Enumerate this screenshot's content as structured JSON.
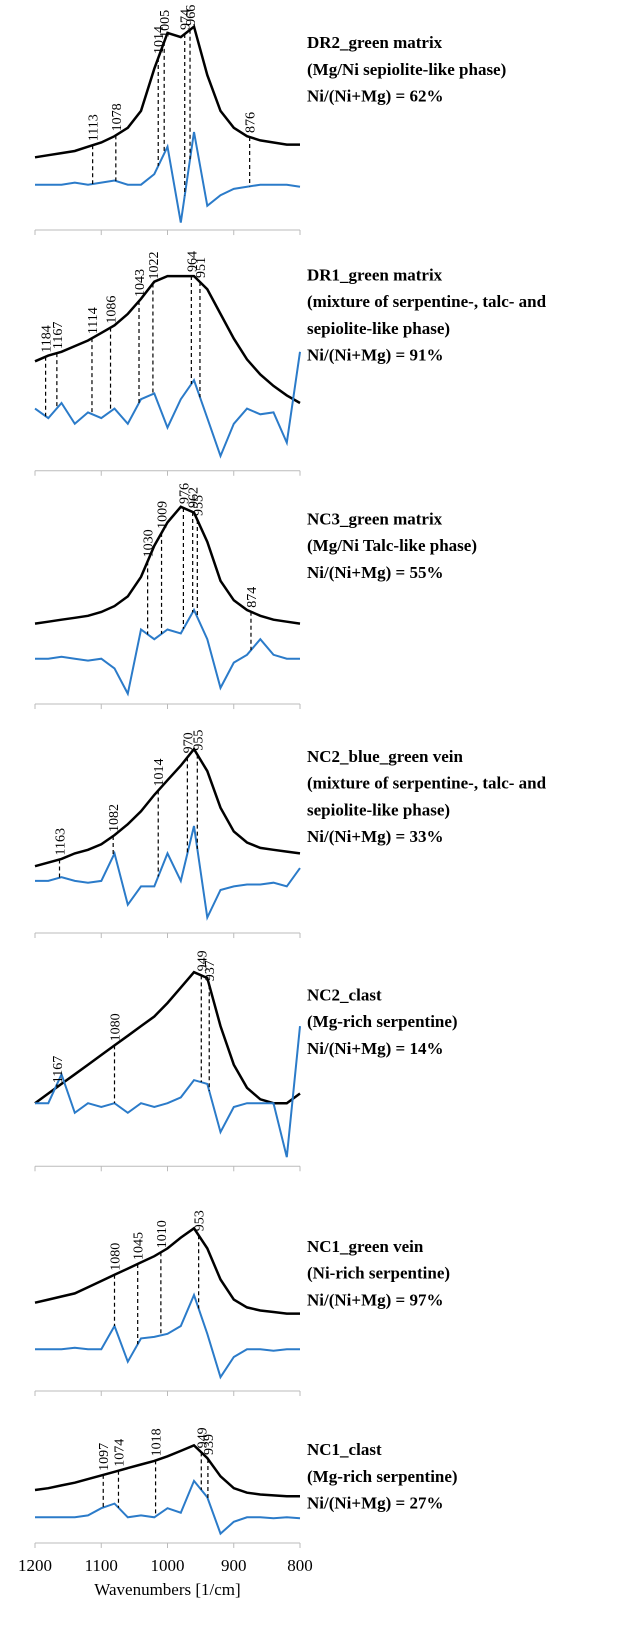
{
  "chart_data": [
    {
      "type": "line",
      "annotations": [
        "DR2_green matrix",
        "(Mg/Ni sepiolite-like phase)",
        "Ni/(Ni+Mg) = 62%"
      ],
      "x": [
        1200,
        1180,
        1160,
        1140,
        1120,
        1100,
        1080,
        1060,
        1040,
        1020,
        1000,
        980,
        960,
        940,
        920,
        900,
        880,
        860,
        840,
        820,
        800
      ],
      "series": [
        {
          "color": "#000000",
          "values": [
            0.33,
            0.34,
            0.35,
            0.36,
            0.38,
            0.4,
            0.43,
            0.47,
            0.55,
            0.75,
            0.92,
            0.9,
            0.95,
            0.72,
            0.55,
            0.47,
            0.43,
            0.41,
            0.4,
            0.39,
            0.39
          ]
        },
        {
          "color": "#2b7bc9",
          "values": [
            0.2,
            0.2,
            0.2,
            0.21,
            0.2,
            0.21,
            0.22,
            0.2,
            0.2,
            0.25,
            0.38,
            0.02,
            0.45,
            0.1,
            0.15,
            0.18,
            0.19,
            0.2,
            0.2,
            0.2,
            0.19
          ]
        }
      ],
      "peaks": [
        1113,
        1078,
        1014,
        1005,
        974,
        966,
        876
      ],
      "xlim": [
        1200,
        800
      ],
      "xticks": [
        1200,
        1100,
        1000,
        900,
        800
      ],
      "ylim": [
        0,
        1
      ]
    },
    {
      "type": "line",
      "annotations": [
        "DR1_green matrix",
        "(mixture of serpentine-, talc- and",
        "sepiolite-like phase)",
        "Ni/(Ni+Mg) = 91%"
      ],
      "x": [
        1200,
        1180,
        1160,
        1140,
        1120,
        1100,
        1080,
        1060,
        1040,
        1020,
        1000,
        980,
        960,
        940,
        920,
        900,
        880,
        860,
        840,
        820,
        800
      ],
      "series": [
        {
          "color": "#000000",
          "values": [
            0.55,
            0.58,
            0.6,
            0.63,
            0.66,
            0.7,
            0.74,
            0.8,
            0.88,
            0.97,
            1,
            1,
            1,
            0.93,
            0.8,
            0.67,
            0.56,
            0.48,
            0.42,
            0.37,
            0.33
          ]
        },
        {
          "color": "#2b7bc9",
          "values": [
            0.3,
            0.25,
            0.33,
            0.22,
            0.28,
            0.25,
            0.3,
            0.22,
            0.35,
            0.38,
            0.2,
            0.35,
            0.45,
            0.25,
            0.05,
            0.22,
            0.3,
            0.27,
            0.28,
            0.12,
            0.6
          ]
        }
      ],
      "peaks": [
        1184,
        1167,
        1114,
        1086,
        1043,
        1022,
        964,
        951
      ],
      "xlim": [
        1200,
        800
      ],
      "xticks": [
        1200,
        1100,
        1000,
        900,
        800
      ],
      "ylim": [
        0,
        1
      ]
    },
    {
      "type": "line",
      "annotations": [
        "NC3_green matrix",
        "(Mg/Ni Talc-like phase)",
        "Ni/(Ni+Mg) = 55%"
      ],
      "x": [
        1200,
        1180,
        1160,
        1140,
        1120,
        1100,
        1080,
        1060,
        1040,
        1020,
        1000,
        980,
        960,
        940,
        920,
        900,
        880,
        860,
        840,
        820,
        800
      ],
      "series": [
        {
          "color": "#000000",
          "values": [
            0.38,
            0.39,
            0.4,
            0.41,
            0.42,
            0.44,
            0.47,
            0.52,
            0.62,
            0.78,
            0.9,
            0.98,
            0.95,
            0.8,
            0.6,
            0.5,
            0.45,
            0.42,
            0.4,
            0.39,
            0.38
          ]
        },
        {
          "color": "#2b7bc9",
          "values": [
            0.2,
            0.2,
            0.21,
            0.2,
            0.19,
            0.2,
            0.15,
            0.02,
            0.35,
            0.3,
            0.35,
            0.33,
            0.45,
            0.3,
            0.05,
            0.18,
            0.22,
            0.3,
            0.22,
            0.2,
            0.2
          ]
        }
      ],
      "peaks": [
        1030,
        1009,
        976,
        962,
        955,
        874
      ],
      "xlim": [
        1200,
        800
      ],
      "xticks": [
        1200,
        1100,
        1000,
        900,
        800
      ],
      "ylim": [
        0,
        1
      ]
    },
    {
      "type": "line",
      "annotations": [
        "NC2_blue_green vein",
        "(mixture of serpentine-, talc- and",
        "sepiolite-like phase)",
        "Ni/(Ni+Mg) = 33%"
      ],
      "x": [
        1200,
        1180,
        1160,
        1140,
        1120,
        1100,
        1080,
        1060,
        1040,
        1020,
        1000,
        980,
        960,
        940,
        920,
        900,
        880,
        860,
        840,
        820,
        800
      ],
      "series": [
        {
          "color": "#000000",
          "values": [
            0.33,
            0.35,
            0.37,
            0.4,
            0.42,
            0.45,
            0.5,
            0.56,
            0.63,
            0.72,
            0.8,
            0.88,
            0.97,
            0.85,
            0.65,
            0.52,
            0.46,
            0.43,
            0.42,
            0.41,
            0.4
          ]
        },
        {
          "color": "#2b7bc9",
          "values": [
            0.25,
            0.25,
            0.27,
            0.25,
            0.24,
            0.25,
            0.4,
            0.12,
            0.22,
            0.22,
            0.4,
            0.25,
            0.55,
            0.05,
            0.2,
            0.22,
            0.23,
            0.23,
            0.24,
            0.22,
            0.32
          ]
        }
      ],
      "peaks": [
        1163,
        1082,
        1014,
        970,
        955
      ],
      "xlim": [
        1200,
        800
      ],
      "xticks": [
        1200,
        1100,
        1000,
        900,
        800
      ],
      "ylim": [
        0,
        1
      ]
    },
    {
      "type": "line",
      "annotations": [
        "NC2_clast",
        "(Mg-rich serpentine)",
        "Ni/(Ni+Mg) = 14%"
      ],
      "x": [
        1200,
        1180,
        1160,
        1140,
        1120,
        1100,
        1080,
        1060,
        1040,
        1020,
        1000,
        980,
        960,
        940,
        920,
        900,
        880,
        860,
        840,
        820,
        800
      ],
      "series": [
        {
          "color": "#000000",
          "values": [
            0.3,
            0.35,
            0.4,
            0.45,
            0.5,
            0.55,
            0.6,
            0.65,
            0.7,
            0.75,
            0.82,
            0.9,
            0.98,
            0.95,
            0.7,
            0.5,
            0.38,
            0.32,
            0.3,
            0.3,
            0.35
          ]
        },
        {
          "color": "#2b7bc9",
          "values": [
            0.3,
            0.3,
            0.45,
            0.25,
            0.3,
            0.28,
            0.3,
            0.25,
            0.3,
            0.28,
            0.3,
            0.33,
            0.42,
            0.4,
            0.15,
            0.28,
            0.3,
            0.3,
            0.3,
            0.02,
            0.7
          ]
        }
      ],
      "peaks": [
        1167,
        1080,
        949,
        937
      ],
      "xlim": [
        1200,
        800
      ],
      "xticks": [
        1200,
        1100,
        1000,
        900,
        800
      ],
      "ylim": [
        0,
        1
      ]
    },
    {
      "type": "line",
      "annotations": [
        "NC1_green vein",
        "(Ni-rich serpentine)",
        "Ni/(Ni+Mg) = 97%"
      ],
      "x": [
        1200,
        1180,
        1160,
        1140,
        1120,
        1100,
        1080,
        1060,
        1040,
        1020,
        1000,
        980,
        960,
        940,
        920,
        900,
        880,
        860,
        840,
        820,
        800
      ],
      "series": [
        {
          "color": "#000000",
          "values": [
            0.5,
            0.52,
            0.54,
            0.56,
            0.6,
            0.64,
            0.68,
            0.72,
            0.76,
            0.8,
            0.85,
            0.92,
            0.98,
            0.85,
            0.65,
            0.52,
            0.47,
            0.45,
            0.44,
            0.43,
            0.43
          ]
        },
        {
          "color": "#2b7bc9",
          "values": [
            0.2,
            0.2,
            0.2,
            0.21,
            0.2,
            0.2,
            0.35,
            0.12,
            0.27,
            0.28,
            0.3,
            0.35,
            0.55,
            0.3,
            0.02,
            0.15,
            0.2,
            0.2,
            0.19,
            0.2,
            0.2
          ]
        }
      ],
      "peaks": [
        1080,
        1045,
        1010,
        953
      ],
      "xlim": [
        1200,
        800
      ],
      "xticks": [
        1200,
        1100,
        1000,
        900,
        800
      ],
      "ylim": [
        0,
        1
      ]
    },
    {
      "type": "line",
      "annotations": [
        "NC1_clast",
        "(Mg-rich serpentine)",
        "Ni/(Ni+Mg) = 27%"
      ],
      "x": [
        1200,
        1180,
        1160,
        1140,
        1120,
        1100,
        1080,
        1060,
        1040,
        1020,
        1000,
        980,
        960,
        940,
        920,
        900,
        880,
        860,
        840,
        820,
        800
      ],
      "series": [
        {
          "color": "#000000",
          "values": [
            0.5,
            0.52,
            0.55,
            0.58,
            0.62,
            0.66,
            0.7,
            0.74,
            0.78,
            0.82,
            0.87,
            0.93,
            0.99,
            0.85,
            0.65,
            0.52,
            0.47,
            0.45,
            0.44,
            0.43,
            0.43
          ]
        },
        {
          "color": "#2b7bc9",
          "values": [
            0.2,
            0.2,
            0.2,
            0.2,
            0.22,
            0.3,
            0.35,
            0.2,
            0.22,
            0.2,
            0.3,
            0.25,
            0.6,
            0.42,
            0.02,
            0.15,
            0.2,
            0.2,
            0.19,
            0.2,
            0.19
          ]
        }
      ],
      "peaks": [
        1097,
        1074,
        1018,
        949,
        939
      ],
      "xlim": [
        1200,
        800
      ],
      "xticks": [
        1200,
        1100,
        1000,
        900,
        800
      ],
      "ylim": [
        0,
        1
      ],
      "xlabel": "Wavenumbers [1/cm]"
    }
  ]
}
